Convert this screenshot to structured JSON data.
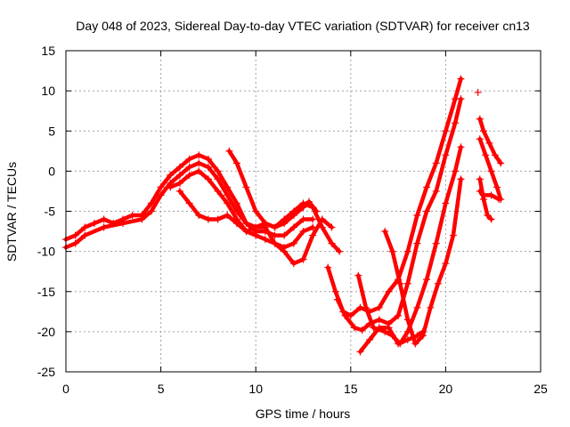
{
  "chart_data": {
    "type": "scatter",
    "title": "Day 048 of 2023, Sidereal Day-to-day VTEC variation (SDTVAR) for receiver cn13",
    "xlabel": "GPS time / hours",
    "ylabel": "SDTVAR / TECUs",
    "xlim": [
      0,
      25
    ],
    "ylim": [
      -25,
      15
    ],
    "xticks": [
      "0",
      "5",
      "10",
      "15",
      "20",
      "25"
    ],
    "yticks": [
      "15",
      "10",
      "5",
      "0",
      "-5",
      "-10",
      "-15",
      "-20",
      "-25"
    ],
    "grid": true,
    "marker": "+",
    "color": "#ff0000",
    "series": [
      {
        "name": "trace-1",
        "points": [
          [
            0,
            -8.5
          ],
          [
            0.5,
            -8
          ],
          [
            1,
            -7
          ],
          [
            1.5,
            -6.5
          ],
          [
            2,
            -6
          ],
          [
            2.5,
            -6.5
          ],
          [
            3,
            -6
          ],
          [
            3.5,
            -5.5
          ],
          [
            4,
            -5.5
          ],
          [
            4.5,
            -4
          ],
          [
            5,
            -2
          ],
          [
            5.5,
            -0.5
          ],
          [
            6,
            0.5
          ],
          [
            6.5,
            1.5
          ],
          [
            7,
            2
          ],
          [
            7.5,
            1.5
          ],
          [
            8,
            0
          ],
          [
            8.5,
            -2
          ],
          [
            9,
            -4
          ],
          [
            9.5,
            -6.5
          ],
          [
            10,
            -7
          ],
          [
            10.5,
            -6.5
          ],
          [
            11,
            -7
          ],
          [
            11.5,
            -6
          ],
          [
            12,
            -5
          ],
          [
            12.5,
            -4
          ],
          [
            13,
            -4.5
          ],
          [
            13.5,
            -7
          ],
          [
            14,
            -9
          ],
          [
            14.4,
            -10
          ]
        ]
      },
      {
        "name": "trace-2",
        "points": [
          [
            0,
            -9.5
          ],
          [
            0.5,
            -9
          ],
          [
            1,
            -8
          ],
          [
            2,
            -7
          ],
          [
            3,
            -6.5
          ],
          [
            4,
            -6
          ],
          [
            4.5,
            -5
          ],
          [
            5,
            -3
          ],
          [
            5.5,
            -1.5
          ],
          [
            6,
            -0.5
          ],
          [
            6.5,
            0.5
          ],
          [
            7,
            1
          ],
          [
            7.5,
            0.5
          ],
          [
            8,
            -1
          ],
          [
            8.5,
            -3
          ],
          [
            9,
            -5
          ],
          [
            9.5,
            -6.5
          ],
          [
            10,
            -7.5
          ],
          [
            10.5,
            -7.5
          ],
          [
            11,
            -8
          ],
          [
            11.5,
            -8
          ],
          [
            12,
            -7
          ],
          [
            12.5,
            -6
          ],
          [
            13,
            -6
          ]
        ]
      },
      {
        "name": "trace-3",
        "points": [
          [
            5.5,
            -2
          ],
          [
            6,
            -1.5
          ],
          [
            6.5,
            -0.5
          ],
          [
            7,
            0
          ],
          [
            7.5,
            -1
          ],
          [
            8,
            -2.5
          ],
          [
            8.5,
            -4
          ],
          [
            9,
            -6
          ],
          [
            9.5,
            -7.5
          ],
          [
            10,
            -8
          ],
          [
            10.5,
            -8.5
          ],
          [
            11,
            -9
          ],
          [
            11.5,
            -9.5
          ],
          [
            12,
            -9
          ],
          [
            12.5,
            -7.5
          ],
          [
            13,
            -7
          ]
        ]
      },
      {
        "name": "trace-4",
        "points": [
          [
            6,
            -2.5
          ],
          [
            6.5,
            -4
          ],
          [
            7,
            -5.5
          ],
          [
            7.5,
            -6
          ],
          [
            8,
            -6
          ],
          [
            8.5,
            -5.5
          ],
          [
            9,
            -6.5
          ],
          [
            9.5,
            -7.5
          ],
          [
            10,
            -7
          ],
          [
            10.5,
            -7
          ],
          [
            11,
            -9
          ],
          [
            11.5,
            -10
          ],
          [
            12,
            -11.5
          ],
          [
            12.5,
            -11
          ],
          [
            13,
            -8
          ],
          [
            13.5,
            -6
          ],
          [
            14,
            -7
          ]
        ]
      },
      {
        "name": "trace-5",
        "points": [
          [
            8.6,
            2.5
          ],
          [
            9,
            1
          ],
          [
            9.5,
            -2
          ],
          [
            10,
            -5
          ],
          [
            10.5,
            -6.5
          ],
          [
            11,
            -7
          ],
          [
            11.5,
            -6.5
          ],
          [
            12,
            -5.5
          ],
          [
            12.5,
            -4.5
          ],
          [
            12.8,
            -3.8
          ],
          [
            13.2,
            -5
          ]
        ]
      },
      {
        "name": "trace-6",
        "points": [
          [
            13.8,
            -12
          ],
          [
            14.2,
            -15
          ],
          [
            14.6,
            -17.5
          ],
          [
            15,
            -18
          ],
          [
            15.5,
            -17
          ],
          [
            16,
            -17.5
          ],
          [
            16.5,
            -17
          ],
          [
            17,
            -15
          ],
          [
            17.5,
            -13.5
          ],
          [
            18,
            -10
          ],
          [
            18.5,
            -5.5
          ],
          [
            19,
            -2
          ],
          [
            19.5,
            1
          ],
          [
            20,
            5
          ],
          [
            20.5,
            9
          ],
          [
            20.8,
            11.5
          ]
        ]
      },
      {
        "name": "trace-7",
        "points": [
          [
            14.3,
            -16
          ],
          [
            14.7,
            -18
          ],
          [
            15.2,
            -19.5
          ],
          [
            15.6,
            -19.8
          ],
          [
            16,
            -19
          ],
          [
            16.5,
            -18.5
          ],
          [
            17,
            -19
          ],
          [
            17.5,
            -18
          ],
          [
            18,
            -14
          ],
          [
            18.5,
            -9
          ],
          [
            19,
            -5
          ],
          [
            19.5,
            -2.5
          ],
          [
            20,
            2
          ],
          [
            20.5,
            6
          ],
          [
            20.8,
            9
          ]
        ]
      },
      {
        "name": "trace-8",
        "points": [
          [
            15.4,
            -13
          ],
          [
            15.8,
            -17
          ],
          [
            16.2,
            -19.5
          ],
          [
            16.8,
            -20
          ],
          [
            17.2,
            -20.5
          ],
          [
            17.6,
            -21.5
          ],
          [
            18,
            -20
          ],
          [
            18.5,
            -17
          ],
          [
            19,
            -13.5
          ],
          [
            19.5,
            -9
          ],
          [
            20,
            -4
          ],
          [
            20.5,
            0
          ],
          [
            20.8,
            3
          ]
        ]
      },
      {
        "name": "trace-9",
        "points": [
          [
            15.5,
            -22.5
          ],
          [
            16,
            -21
          ],
          [
            16.5,
            -19.5
          ],
          [
            17,
            -19.5
          ],
          [
            17.5,
            -21.5
          ],
          [
            18,
            -21
          ],
          [
            18.5,
            -20.5
          ],
          [
            18.8,
            -20
          ]
        ]
      },
      {
        "name": "trace-10",
        "points": [
          [
            16.8,
            -7.5
          ],
          [
            17.2,
            -10
          ],
          [
            17.6,
            -14
          ],
          [
            18,
            -18.5
          ],
          [
            18.4,
            -21.5
          ],
          [
            18.8,
            -20.5
          ],
          [
            19.2,
            -17
          ],
          [
            19.6,
            -14
          ],
          [
            20,
            -11.5
          ],
          [
            20.4,
            -8
          ],
          [
            20.8,
            -1
          ]
        ]
      },
      {
        "name": "trace-11",
        "points": [
          [
            21.8,
            6.5
          ],
          [
            22,
            5
          ],
          [
            22.3,
            3.5
          ],
          [
            22.6,
            2
          ],
          [
            22.9,
            1
          ]
        ]
      },
      {
        "name": "trace-12",
        "points": [
          [
            21.8,
            4
          ],
          [
            22.1,
            2
          ],
          [
            22.4,
            0
          ],
          [
            22.7,
            -2
          ],
          [
            22.9,
            -3.5
          ]
        ]
      },
      {
        "name": "trace-13",
        "points": [
          [
            21.8,
            -2.5
          ],
          [
            22,
            -3
          ],
          [
            22.4,
            -3
          ],
          [
            22.8,
            -3.5
          ]
        ]
      },
      {
        "name": "trace-14",
        "points": [
          [
            21.8,
            -1
          ],
          [
            22,
            -3.5
          ],
          [
            22.2,
            -5.5
          ],
          [
            22.4,
            -6
          ]
        ]
      },
      {
        "name": "isolated-point",
        "points": [
          [
            21.7,
            9.8
          ]
        ]
      }
    ]
  }
}
